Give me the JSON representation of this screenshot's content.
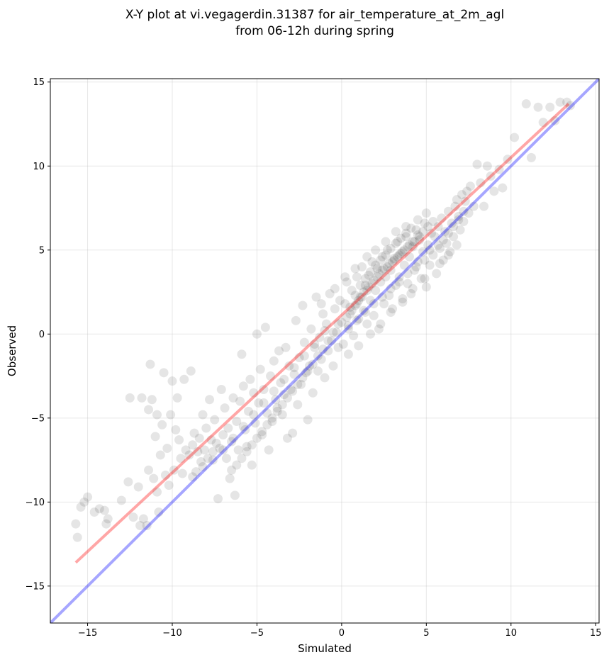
{
  "chart_data": {
    "type": "scatter",
    "title": "X-Y plot at vi.vegagerdin.31387 for air_temperature_at_2m_agl",
    "subtitle": "from 06-12h during spring",
    "xlabel": "Simulated",
    "ylabel": "Observed",
    "xlim": [
      -17.2,
      15.2
    ],
    "ylim": [
      -17.2,
      15.2
    ],
    "xticks": [
      -15,
      -10,
      -5,
      0,
      5,
      10,
      15
    ],
    "yticks": [
      -15,
      -10,
      -5,
      0,
      5,
      10,
      15
    ],
    "xtick_labels": [
      "−15",
      "−10",
      "−5",
      "0",
      "5",
      "10",
      "15"
    ],
    "ytick_labels": [
      "−15",
      "−10",
      "−5",
      "0",
      "5",
      "10",
      "15"
    ],
    "grid": true,
    "point_color": "#000000",
    "point_opacity": 0.1,
    "identity_line": {
      "color": "#0000ff",
      "x": [
        -17.2,
        15.2
      ],
      "y": [
        -17.2,
        15.2
      ]
    },
    "fit_line": {
      "color": "#ff0000",
      "x": [
        -15.7,
        13.4
      ],
      "y": [
        -13.6,
        13.7
      ]
    },
    "points": [
      [
        -15.7,
        -11.3
      ],
      [
        -15.6,
        -12.1
      ],
      [
        -15.4,
        -10.3
      ],
      [
        -15.2,
        -10.0
      ],
      [
        -15.0,
        -9.7
      ],
      [
        -14.6,
        -10.6
      ],
      [
        -14.3,
        -10.4
      ],
      [
        -14.0,
        -10.5
      ],
      [
        -13.9,
        -11.3
      ],
      [
        -13.8,
        -11.0
      ],
      [
        -13.0,
        -9.9
      ],
      [
        -12.6,
        -8.8
      ],
      [
        -12.5,
        -3.8
      ],
      [
        -12.3,
        -10.9
      ],
      [
        -12.0,
        -9.1
      ],
      [
        -11.9,
        -11.4
      ],
      [
        -11.8,
        -3.8
      ],
      [
        -11.7,
        -11.0
      ],
      [
        -11.5,
        -11.4
      ],
      [
        -11.4,
        -8.1
      ],
      [
        -11.4,
        -4.5
      ],
      [
        -11.3,
        -1.8
      ],
      [
        -11.2,
        -3.9
      ],
      [
        -11.1,
        -8.6
      ],
      [
        -11.0,
        -6.1
      ],
      [
        -10.9,
        -9.4
      ],
      [
        -10.9,
        -4.8
      ],
      [
        -10.8,
        -10.6
      ],
      [
        -10.7,
        -7.2
      ],
      [
        -10.6,
        -5.4
      ],
      [
        -10.5,
        -2.3
      ],
      [
        -10.4,
        -8.4
      ],
      [
        -10.3,
        -6.8
      ],
      [
        -10.2,
        -9.0
      ],
      [
        -10.1,
        -4.8
      ],
      [
        -10.0,
        -2.8
      ],
      [
        -9.9,
        -8.1
      ],
      [
        -9.8,
        -5.7
      ],
      [
        -9.7,
        -3.8
      ],
      [
        -9.6,
        -6.3
      ],
      [
        -9.5,
        -7.4
      ],
      [
        -9.4,
        -8.3
      ],
      [
        -9.3,
        -2.7
      ],
      [
        -9.2,
        -6.9
      ],
      [
        -9.0,
        -7.2
      ],
      [
        -8.9,
        -2.2
      ],
      [
        -8.8,
        -6.6
      ],
      [
        -8.7,
        -5.9
      ],
      [
        -8.6,
        -8.2
      ],
      [
        -8.5,
        -7.0
      ],
      [
        -8.4,
        -6.2
      ],
      [
        -8.3,
        -7.6
      ],
      [
        -8.2,
        -4.8
      ],
      [
        -8.1,
        -6.9
      ],
      [
        -8.0,
        -5.6
      ],
      [
        -7.9,
        -7.4
      ],
      [
        -7.8,
        -3.9
      ],
      [
        -7.7,
        -6.3
      ],
      [
        -7.6,
        -7.0
      ],
      [
        -7.5,
        -5.1
      ],
      [
        -7.4,
        -6.5
      ],
      [
        -7.3,
        -9.8
      ],
      [
        -7.2,
        -6.8
      ],
      [
        -7.1,
        -3.3
      ],
      [
        -7.0,
        -6.0
      ],
      [
        -6.9,
        -4.4
      ],
      [
        -6.8,
        -7.4
      ],
      [
        -6.7,
        -5.6
      ],
      [
        -6.6,
        -8.6
      ],
      [
        -6.5,
        -6.4
      ],
      [
        -6.4,
        -3.8
      ],
      [
        -6.3,
        -9.6
      ],
      [
        -6.2,
        -5.2
      ],
      [
        -6.1,
        -6.9
      ],
      [
        -6.0,
        -4.0
      ],
      [
        -5.9,
        -1.2
      ],
      [
        -5.8,
        -3.1
      ],
      [
        -5.7,
        -5.7
      ],
      [
        -5.6,
        -6.7
      ],
      [
        -5.5,
        -4.6
      ],
      [
        -5.4,
        -2.7
      ],
      [
        -5.3,
        -7.8
      ],
      [
        -5.2,
        -3.5
      ],
      [
        -5.1,
        -5.3
      ],
      [
        -5.0,
        -0.0
      ],
      [
        -4.9,
        -4.1
      ],
      [
        -4.8,
        -2.1
      ],
      [
        -4.7,
        -6.0
      ],
      [
        -4.6,
        -3.3
      ],
      [
        -4.5,
        0.4
      ],
      [
        -4.4,
        -4.7
      ],
      [
        -4.3,
        -6.9
      ],
      [
        -4.2,
        -2.5
      ],
      [
        -4.1,
        -5.2
      ],
      [
        -4.0,
        -1.6
      ],
      [
        -3.9,
        -3.9
      ],
      [
        -3.8,
        -4.4
      ],
      [
        -3.7,
        -1.0
      ],
      [
        -3.6,
        -2.9
      ],
      [
        -3.5,
        -4.8
      ],
      [
        -3.4,
        -3.6
      ],
      [
        -3.3,
        -0.8
      ],
      [
        -3.2,
        -6.2
      ],
      [
        -3.1,
        -1.9
      ],
      [
        -3.0,
        -3.3
      ],
      [
        -2.9,
        -5.9
      ],
      [
        -2.8,
        -2.4
      ],
      [
        -2.7,
        0.8
      ],
      [
        -2.6,
        -4.2
      ],
      [
        -2.5,
        -1.4
      ],
      [
        -2.4,
        -3.0
      ],
      [
        -2.3,
        1.7
      ],
      [
        -2.2,
        -0.5
      ],
      [
        -2.1,
        -2.3
      ],
      [
        -2.0,
        -5.1
      ],
      [
        -1.9,
        -1.9
      ],
      [
        -1.8,
        0.3
      ],
      [
        -1.7,
        -3.5
      ],
      [
        -1.6,
        -0.8
      ],
      [
        -1.5,
        2.2
      ],
      [
        -1.4,
        -2.2
      ],
      [
        -1.3,
        -0.2
      ],
      [
        -1.2,
        -1.5
      ],
      [
        -1.1,
        1.2
      ],
      [
        -1.0,
        -2.6
      ],
      [
        -0.9,
        0.6
      ],
      [
        -0.8,
        -1.0
      ],
      [
        -0.7,
        2.4
      ],
      [
        -0.6,
        -0.4
      ],
      [
        -0.5,
        -1.9
      ],
      [
        -0.4,
        1.5
      ],
      [
        -0.3,
        0.1
      ],
      [
        -0.2,
        -0.8
      ],
      [
        -0.1,
        2.0
      ],
      [
        0.0,
        0.7
      ],
      [
        0.1,
        -0.6
      ],
      [
        0.2,
        1.8
      ],
      [
        0.3,
        3.1
      ],
      [
        0.4,
        0.3
      ],
      [
        0.5,
        1.2
      ],
      [
        0.6,
        2.6
      ],
      [
        0.7,
        -0.1
      ],
      [
        0.8,
        1.7
      ],
      [
        0.9,
        3.4
      ],
      [
        1.0,
        0.9
      ],
      [
        1.1,
        2.2
      ],
      [
        1.2,
        4.0
      ],
      [
        1.3,
        1.4
      ],
      [
        1.4,
        2.9
      ],
      [
        1.5,
        0.6
      ],
      [
        1.6,
        3.5
      ],
      [
        1.7,
        2.0
      ],
      [
        1.8,
        4.3
      ],
      [
        1.9,
        1.1
      ],
      [
        2.0,
        2.6
      ],
      [
        2.1,
        3.9
      ],
      [
        2.2,
        0.3
      ],
      [
        2.3,
        3.1
      ],
      [
        2.4,
        4.6
      ],
      [
        2.5,
        1.8
      ],
      [
        2.6,
        3.4
      ],
      [
        2.7,
        5.0
      ],
      [
        2.8,
        2.3
      ],
      [
        2.9,
        3.8
      ],
      [
        3.0,
        1.5
      ],
      [
        3.1,
        4.4
      ],
      [
        3.2,
        2.9
      ],
      [
        3.3,
        5.5
      ],
      [
        3.4,
        3.4
      ],
      [
        3.5,
        4.8
      ],
      [
        3.6,
        1.9
      ],
      [
        3.7,
        4.1
      ],
      [
        3.8,
        5.8
      ],
      [
        3.9,
        3.0
      ],
      [
        4.0,
        4.6
      ],
      [
        4.1,
        2.4
      ],
      [
        4.2,
        5.2
      ],
      [
        4.3,
        3.8
      ],
      [
        4.4,
        6.2
      ],
      [
        4.5,
        4.3
      ],
      [
        4.6,
        5.6
      ],
      [
        4.7,
        3.3
      ],
      [
        4.8,
        4.9
      ],
      [
        4.9,
        6.6
      ],
      [
        5.0,
        2.8
      ],
      [
        5.1,
        5.3
      ],
      [
        5.2,
        4.1
      ],
      [
        5.3,
        6.0
      ],
      [
        5.4,
        4.7
      ],
      [
        5.5,
        5.8
      ],
      [
        5.6,
        3.6
      ],
      [
        5.7,
        6.4
      ],
      [
        5.8,
        5.1
      ],
      [
        5.9,
        6.9
      ],
      [
        6.0,
        4.4
      ],
      [
        6.1,
        6.1
      ],
      [
        6.2,
        5.4
      ],
      [
        6.3,
        7.3
      ],
      [
        6.4,
        4.9
      ],
      [
        6.5,
        6.6
      ],
      [
        6.6,
        5.8
      ],
      [
        6.7,
        7.6
      ],
      [
        6.8,
        5.3
      ],
      [
        6.9,
        7.0
      ],
      [
        7.0,
        6.2
      ],
      [
        7.1,
        8.3
      ],
      [
        7.2,
        6.7
      ],
      [
        7.3,
        7.9
      ],
      [
        7.5,
        7.2
      ],
      [
        7.6,
        8.8
      ],
      [
        7.8,
        7.6
      ],
      [
        8.0,
        10.1
      ],
      [
        8.2,
        9.0
      ],
      [
        8.4,
        7.6
      ],
      [
        8.6,
        10.0
      ],
      [
        8.8,
        9.4
      ],
      [
        9.0,
        8.5
      ],
      [
        9.3,
        9.8
      ],
      [
        9.5,
        8.7
      ],
      [
        9.8,
        10.4
      ],
      [
        10.2,
        11.7
      ],
      [
        10.9,
        13.7
      ],
      [
        11.2,
        10.5
      ],
      [
        11.6,
        13.5
      ],
      [
        11.9,
        12.6
      ],
      [
        12.3,
        13.5
      ],
      [
        12.6,
        12.7
      ],
      [
        12.9,
        13.8
      ],
      [
        13.3,
        13.8
      ],
      [
        13.5,
        13.6
      ],
      [
        1.0,
        2.0
      ],
      [
        1.3,
        2.5
      ],
      [
        1.6,
        2.8
      ],
      [
        1.9,
        3.2
      ],
      [
        2.2,
        3.6
      ],
      [
        2.5,
        3.9
      ],
      [
        2.8,
        4.2
      ],
      [
        3.1,
        4.5
      ],
      [
        3.4,
        4.7
      ],
      [
        3.7,
        5.0
      ],
      [
        4.0,
        5.3
      ],
      [
        4.3,
        5.5
      ],
      [
        4.6,
        5.8
      ],
      [
        0.5,
        1.6
      ],
      [
        0.8,
        2.3
      ],
      [
        1.1,
        2.9
      ],
      [
        1.4,
        3.3
      ],
      [
        1.7,
        3.7
      ],
      [
        2.0,
        4.1
      ],
      [
        2.3,
        4.4
      ],
      [
        2.6,
        4.7
      ],
      [
        2.9,
        5.1
      ],
      [
        3.2,
        5.4
      ],
      [
        3.5,
        5.7
      ],
      [
        3.8,
        6.0
      ],
      [
        4.1,
        6.3
      ],
      [
        0.3,
        1.0
      ],
      [
        0.6,
        1.4
      ],
      [
        0.9,
        1.8
      ],
      [
        1.2,
        2.2
      ],
      [
        1.5,
        2.6
      ],
      [
        1.8,
        3.0
      ],
      [
        2.1,
        3.4
      ],
      [
        2.4,
        3.8
      ],
      [
        2.7,
        4.0
      ],
      [
        3.0,
        4.3
      ],
      [
        3.3,
        4.6
      ],
      [
        3.6,
        4.9
      ],
      [
        3.9,
        5.2
      ],
      [
        4.2,
        5.5
      ],
      [
        4.5,
        5.9
      ],
      [
        4.8,
        6.1
      ],
      [
        5.1,
        6.4
      ],
      [
        5.4,
        6.7
      ],
      [
        -0.2,
        0.6
      ],
      [
        -0.5,
        0.1
      ],
      [
        -0.8,
        -0.4
      ],
      [
        -1.1,
        -0.9
      ],
      [
        -1.4,
        -1.3
      ],
      [
        -1.7,
        -1.8
      ],
      [
        -2.0,
        -2.2
      ],
      [
        -2.3,
        -2.6
      ],
      [
        -2.6,
        -3.0
      ],
      [
        -2.9,
        -3.4
      ],
      [
        -3.2,
        -3.8
      ],
      [
        -3.5,
        -4.2
      ],
      [
        -3.8,
        -4.6
      ],
      [
        -4.1,
        -5.0
      ],
      [
        -4.4,
        -5.4
      ],
      [
        -4.7,
        -5.8
      ],
      [
        -5.0,
        -6.2
      ],
      [
        -5.3,
        -6.6
      ],
      [
        -5.6,
        -7.0
      ],
      [
        -5.9,
        -7.4
      ],
      [
        -6.2,
        -7.8
      ],
      [
        -6.5,
        -8.1
      ],
      [
        -1.0,
        0.2
      ],
      [
        -1.6,
        -0.6
      ],
      [
        -2.2,
        -1.3
      ],
      [
        -2.8,
        -2.0
      ],
      [
        -3.4,
        -2.7
      ],
      [
        -4.0,
        -3.4
      ],
      [
        -4.6,
        -4.1
      ],
      [
        -5.2,
        -4.8
      ],
      [
        -5.8,
        -5.5
      ],
      [
        -6.4,
        -6.2
      ],
      [
        -7.0,
        -6.9
      ],
      [
        -7.6,
        -7.5
      ],
      [
        -8.2,
        -7.9
      ],
      [
        -8.8,
        -8.5
      ],
      [
        5.7,
        5.3
      ],
      [
        6.0,
        5.6
      ],
      [
        6.3,
        6.0
      ],
      [
        6.6,
        6.4
      ],
      [
        6.9,
        6.8
      ],
      [
        7.2,
        7.3
      ],
      [
        5.2,
        5.0
      ],
      [
        4.9,
        4.4
      ],
      [
        4.4,
        4.0
      ],
      [
        3.9,
        3.6
      ],
      [
        3.4,
        3.1
      ],
      [
        2.9,
        2.7
      ],
      [
        2.4,
        2.2
      ],
      [
        1.9,
        1.8
      ],
      [
        1.4,
        1.3
      ],
      [
        0.9,
        0.8
      ],
      [
        0.4,
        0.5
      ],
      [
        6.8,
        8.0
      ],
      [
        7.4,
        8.5
      ],
      [
        5.0,
        7.2
      ],
      [
        4.5,
        6.8
      ],
      [
        3.8,
        6.4
      ],
      [
        3.2,
        6.1
      ],
      [
        2.6,
        5.5
      ],
      [
        2.0,
        5.0
      ],
      [
        1.5,
        4.6
      ],
      [
        0.8,
        3.9
      ],
      [
        0.2,
        3.4
      ],
      [
        -0.4,
        2.7
      ],
      [
        -1.2,
        1.8
      ],
      [
        5.8,
        4.2
      ],
      [
        6.3,
        4.7
      ],
      [
        4.9,
        3.3
      ],
      [
        4.2,
        2.7
      ],
      [
        3.6,
        2.1
      ],
      [
        2.9,
        1.3
      ],
      [
        2.3,
        0.6
      ],
      [
        1.7,
        0.0
      ],
      [
        1.0,
        -0.7
      ],
      [
        0.4,
        -1.2
      ]
    ]
  }
}
